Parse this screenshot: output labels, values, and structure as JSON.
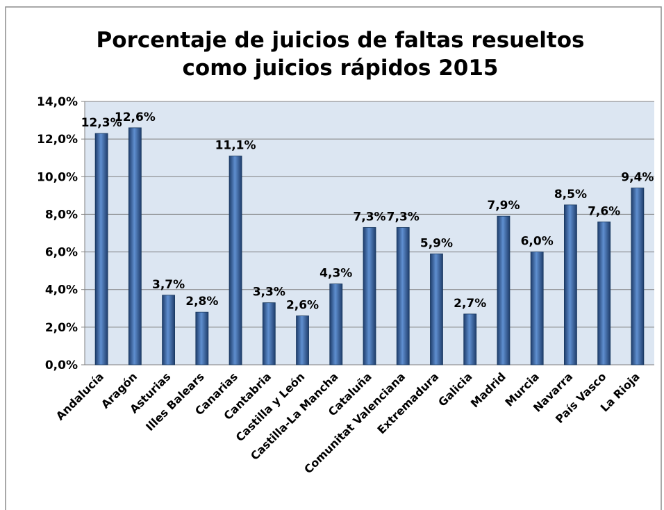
{
  "chart_data": {
    "type": "bar",
    "title": [
      "Porcentaje de juicios de faltas resueltos",
      "como juicios rápidos 2015"
    ],
    "categories": [
      "Andalucía",
      "Aragón",
      "Asturias",
      "Illes Balears",
      "Canarias",
      "Cantabria",
      "Castilla y León",
      "Castilla-La Mancha",
      "Cataluña",
      "Comunitat Valenciana",
      "Extremadura",
      "Galicia",
      "Madrid",
      "Murcia",
      "Navarra",
      "País Vasco",
      "La Rioja"
    ],
    "values": [
      12.3,
      12.6,
      3.7,
      2.8,
      11.1,
      3.3,
      2.6,
      4.3,
      7.3,
      7.3,
      5.9,
      2.7,
      7.9,
      6.0,
      8.5,
      7.6,
      9.4
    ],
    "value_labels": [
      "12,3%",
      "12,6%",
      "3,7%",
      "2,8%",
      "11,1%",
      "3,3%",
      "2,6%",
      "4,3%",
      "7,3%",
      "7,3%",
      "5,9%",
      "2,7%",
      "7,9%",
      "6,0%",
      "8,5%",
      "7,6%",
      "9,4%"
    ],
    "color": "#4f81bd",
    "ylim": [
      0,
      14
    ],
    "yticks": [
      {
        "value": 0,
        "label": "0,0%"
      },
      {
        "value": 2,
        "label": "2,0%"
      },
      {
        "value": 4,
        "label": "4,0%"
      },
      {
        "value": 6,
        "label": "6,0%"
      },
      {
        "value": 8,
        "label": "8,0%"
      },
      {
        "value": 10,
        "label": "10,0%"
      },
      {
        "value": 12,
        "label": "12,0%"
      },
      {
        "value": 14,
        "label": "14,0%"
      }
    ],
    "grid": true
  }
}
